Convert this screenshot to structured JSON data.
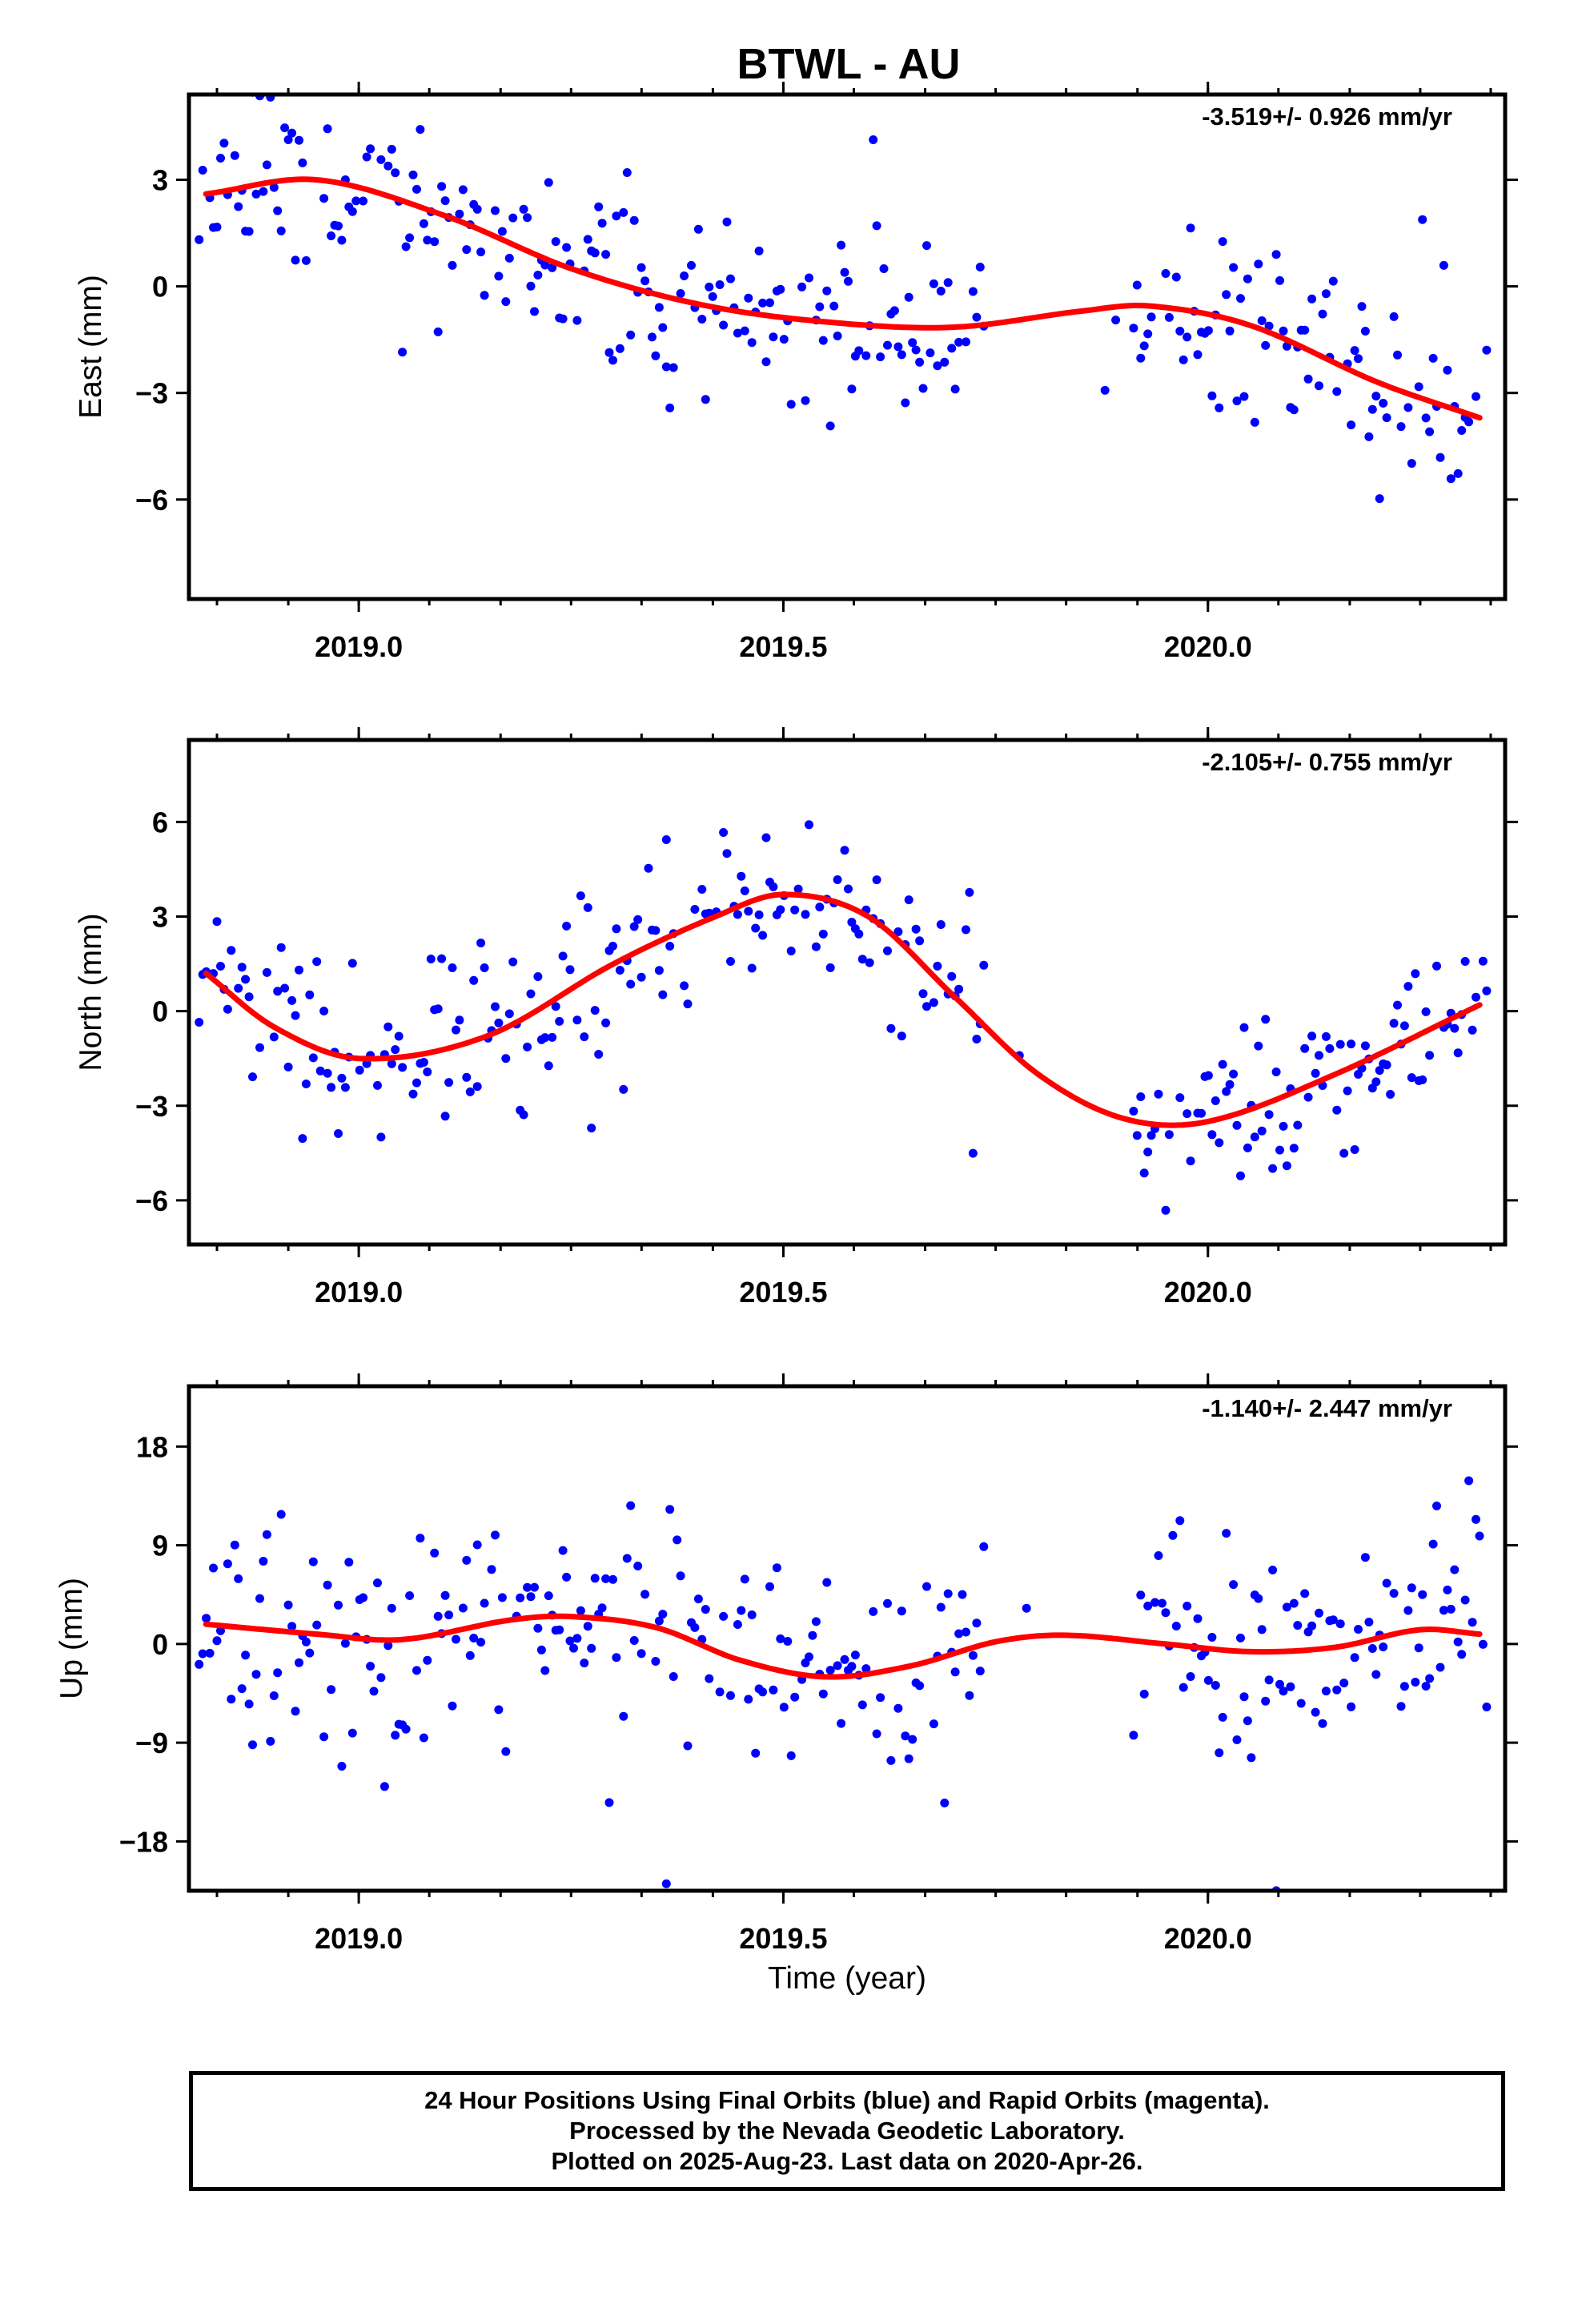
{
  "title": "BTWL - AU",
  "xlabel": "Time (year)",
  "x_ticks": [
    "2019.0",
    "2019.5",
    "2020.0"
  ],
  "footer": {
    "line1": "24 Hour Positions Using Final Orbits (blue) and Rapid Orbits (magenta).",
    "line2": "Processed by the Nevada Geodetic Laboratory.",
    "line3": "Plotted on 2025-Aug-23. Last data on 2020-Apr-26."
  },
  "colors": {
    "final_orbits": "#0000ff",
    "rapid_orbits": "#ff00ff",
    "fit": "#ff0000"
  },
  "chart_data": [
    {
      "type": "scatter",
      "ylabel": "East (mm)",
      "rate": "-3.519+/- 0.926 mm/yr",
      "xlim": [
        2018.8,
        2020.35
      ],
      "ylim": [
        -8.8,
        5.4
      ],
      "y_ticks": [
        3,
        0,
        -3,
        -6
      ],
      "y_tick_labels": [
        "3",
        "0",
        "−3",
        "−6"
      ],
      "fit": {
        "x": [
          2018.82,
          2018.95,
          2019.1,
          2019.25,
          2019.4,
          2019.55,
          2019.7,
          2019.85,
          2019.93,
          2020.05,
          2020.2,
          2020.32
        ],
        "y": [
          2.6,
          3.0,
          2.0,
          0.5,
          -0.5,
          -1.0,
          -1.15,
          -0.7,
          -0.55,
          -1.1,
          -2.7,
          -3.7
        ]
      },
      "seed": 11,
      "gaps": [
        [
          2019.74,
          2019.91
        ]
      ],
      "scatter_sd": 1.35
    },
    {
      "type": "scatter",
      "ylabel": "North (mm)",
      "rate": "-2.105+/- 0.755 mm/yr",
      "xlim": [
        2018.8,
        2020.35
      ],
      "ylim": [
        -7.4,
        8.6
      ],
      "y_ticks": [
        6,
        3,
        0,
        -3,
        -6
      ],
      "y_tick_labels": [
        "6",
        "3",
        "0",
        "−3",
        "−6"
      ],
      "fit": {
        "x": [
          2018.82,
          2018.9,
          2019.0,
          2019.15,
          2019.3,
          2019.42,
          2019.5,
          2019.6,
          2019.7,
          2019.8,
          2019.9,
          2020.0,
          2020.15,
          2020.32
        ],
        "y": [
          1.2,
          -0.5,
          -1.5,
          -0.8,
          1.5,
          3.0,
          3.7,
          3.0,
          0.5,
          -2.0,
          -3.4,
          -3.5,
          -2.0,
          0.2
        ]
      },
      "seed": 23,
      "gaps": [
        [
          2019.74,
          2019.91
        ]
      ],
      "scatter_sd": 1.2
    },
    {
      "type": "scatter",
      "ylabel": "Up (mm)",
      "rate": "-1.140+/- 2.447 mm/yr",
      "xlim": [
        2018.8,
        2020.35
      ],
      "ylim": [
        -22.5,
        23.5
      ],
      "y_ticks": [
        18,
        9,
        0,
        -9,
        -18
      ],
      "y_tick_labels": [
        "18",
        "9",
        "0",
        "−9",
        "−18"
      ],
      "fit": {
        "x": [
          2018.82,
          2018.95,
          2019.05,
          2019.18,
          2019.25,
          2019.35,
          2019.45,
          2019.55,
          2019.65,
          2019.75,
          2019.83,
          2019.95,
          2020.05,
          2020.15,
          2020.25,
          2020.32
        ],
        "y": [
          1.8,
          0.9,
          0.4,
          2.2,
          2.5,
          1.5,
          -1.5,
          -3.0,
          -2.0,
          0.2,
          0.8,
          0.0,
          -0.7,
          -0.3,
          1.3,
          0.9
        ]
      },
      "seed": 37,
      "gaps": [
        [
          2019.74,
          2019.91
        ]
      ],
      "scatter_sd": 5.0
    }
  ]
}
